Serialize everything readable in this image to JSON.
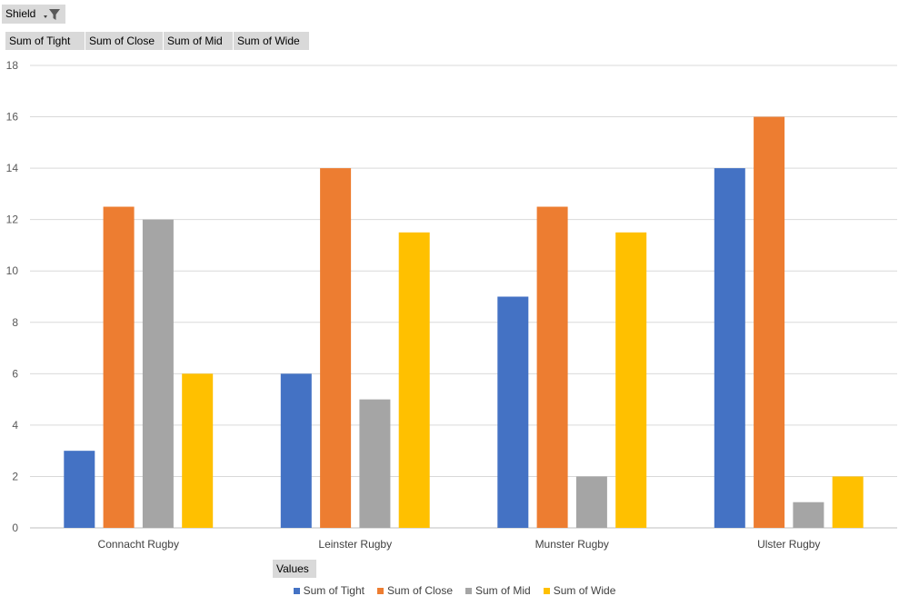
{
  "filter": {
    "label": "Shield",
    "icon": "filter-dropdown-icon"
  },
  "value_fields": [
    "Sum of Tight",
    "Sum of Close",
    "Sum of Mid",
    "Sum of Wide"
  ],
  "values_button": "Values",
  "chart_data": {
    "type": "bar",
    "categories": [
      "Connacht Rugby",
      "Leinster Rugby",
      "Munster Rugby",
      "Ulster Rugby"
    ],
    "series": [
      {
        "name": "Sum of Tight",
        "color": "#4472C4",
        "values": [
          3,
          6,
          9,
          14
        ]
      },
      {
        "name": "Sum of Close",
        "color": "#ED7D31",
        "values": [
          12.5,
          14,
          12.5,
          16
        ]
      },
      {
        "name": "Sum of Mid",
        "color": "#A5A5A5",
        "values": [
          12,
          5,
          2,
          1
        ]
      },
      {
        "name": "Sum of Wide",
        "color": "#FFC000",
        "values": [
          6,
          11.5,
          11.5,
          2
        ]
      }
    ],
    "ylim": [
      0,
      18
    ],
    "yticks": [
      0,
      2,
      4,
      6,
      8,
      10,
      12,
      14,
      16,
      18
    ],
    "grid": true,
    "legend": "bottom"
  }
}
